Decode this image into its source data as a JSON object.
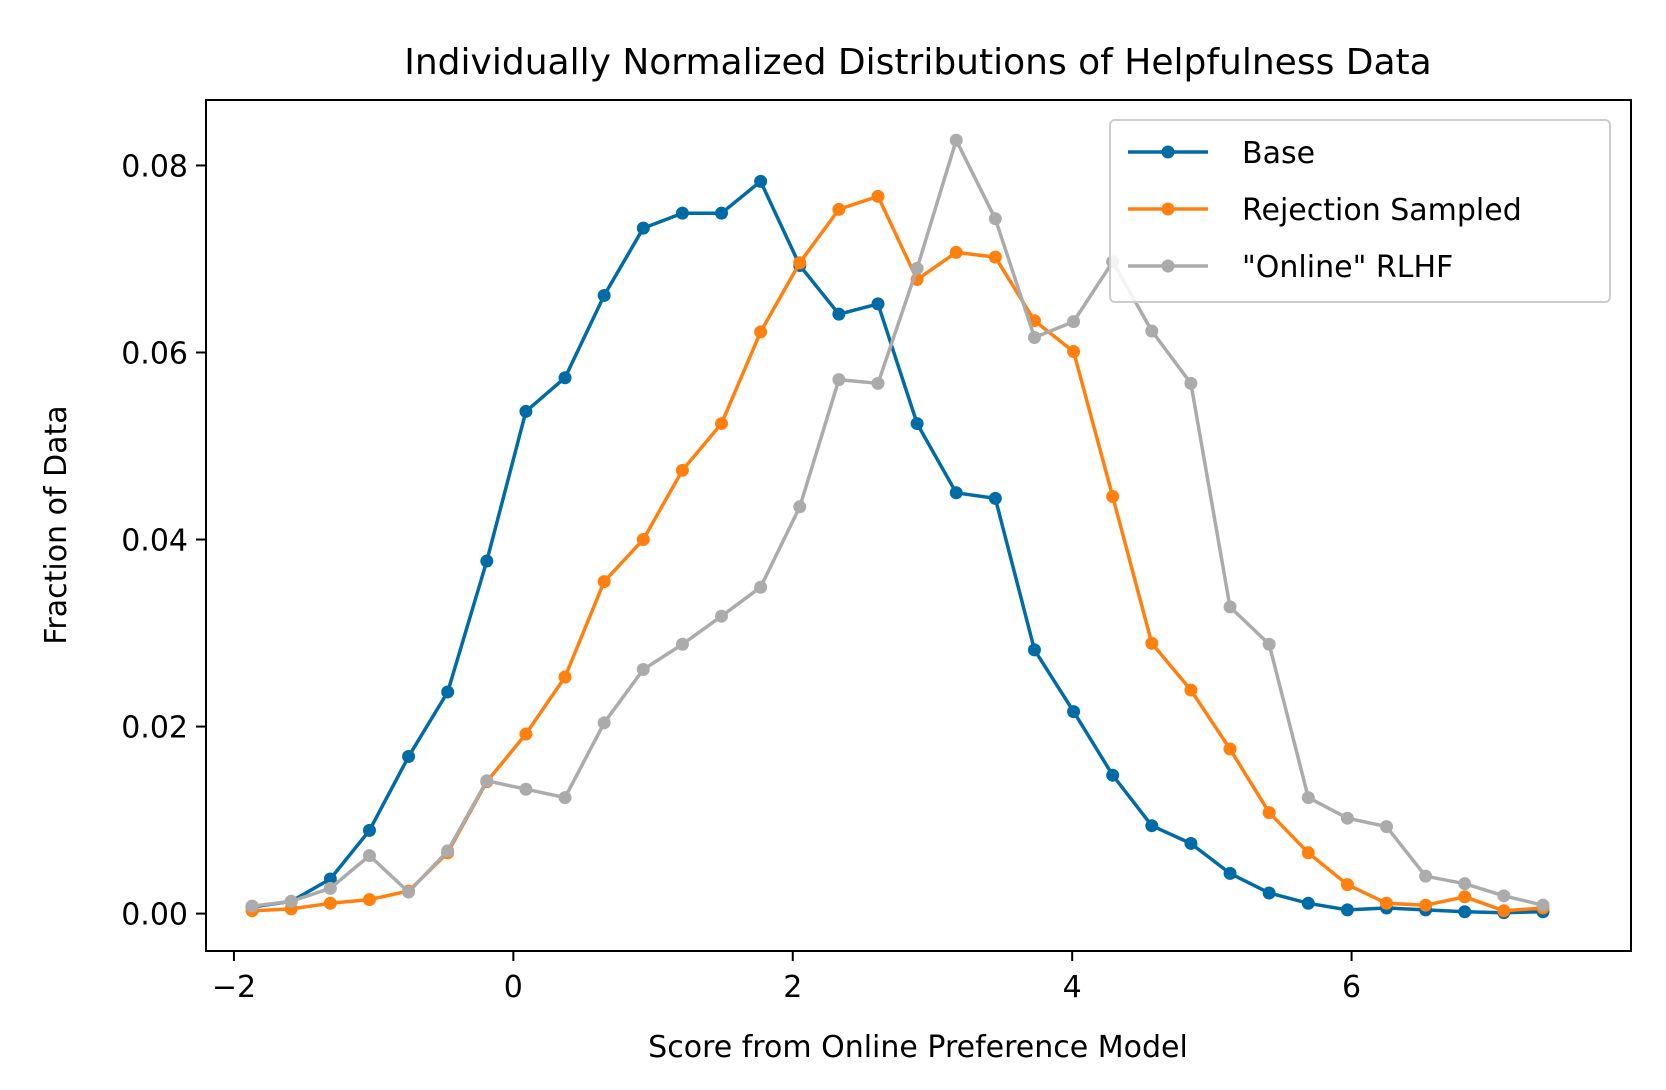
{
  "chart_data": {
    "type": "line",
    "title": "Individually Normalized Distributions of Helpfulness Data",
    "xlabel": "Score from Online Preference Model",
    "ylabel": "Fraction of Data",
    "xlim": [
      -2.2,
      8.0
    ],
    "ylim": [
      -0.004,
      0.087
    ],
    "x_ticks": [
      -2,
      0,
      2,
      4,
      6
    ],
    "x_tick_labels": [
      "−2",
      "0",
      "2",
      "4",
      "6"
    ],
    "y_ticks": [
      0.0,
      0.02,
      0.04,
      0.06,
      0.08
    ],
    "y_tick_labels": [
      "0.00",
      "0.02",
      "0.04",
      "0.06",
      "0.08"
    ],
    "grid": false,
    "legend_position": "top-right",
    "x": [
      -1.87,
      -1.59,
      -1.31,
      -1.03,
      -0.75,
      -0.47,
      -0.19,
      0.09,
      0.37,
      0.65,
      0.93,
      1.21,
      1.49,
      1.77,
      2.05,
      2.33,
      2.61,
      2.89,
      3.17,
      3.45,
      3.73,
      4.01,
      4.29,
      4.57,
      4.85,
      5.13,
      5.41,
      5.69,
      5.97,
      6.25,
      6.53,
      6.81,
      7.09,
      7.37
    ],
    "series": [
      {
        "name": "Base",
        "color": "#006BA4",
        "values": [
          0.0007,
          0.0013,
          0.0037,
          0.0089,
          0.0168,
          0.0237,
          0.0377,
          0.0537,
          0.0573,
          0.0661,
          0.0733,
          0.0749,
          0.0749,
          0.0783,
          0.0693,
          0.0641,
          0.0652,
          0.0524,
          0.045,
          0.0444,
          0.0282,
          0.0216,
          0.0148,
          0.0094,
          0.0075,
          0.0043,
          0.0022,
          0.0011,
          0.0004,
          0.0006,
          0.0004,
          0.0002,
          0.0001,
          0.0002
        ]
      },
      {
        "name": "Rejection Sampled",
        "color": "#FF800E",
        "values": [
          0.0003,
          0.0005,
          0.0011,
          0.0015,
          0.0024,
          0.0065,
          0.0141,
          0.0192,
          0.0253,
          0.0355,
          0.04,
          0.0474,
          0.0524,
          0.0622,
          0.0696,
          0.0753,
          0.0767,
          0.0678,
          0.0707,
          0.0702,
          0.0634,
          0.0601,
          0.0446,
          0.0289,
          0.0239,
          0.0176,
          0.0108,
          0.0065,
          0.0031,
          0.0011,
          0.0009,
          0.0018,
          0.0003,
          0.0006
        ]
      },
      {
        "name": "\"Online\" RLHF",
        "color": "#ABABAB",
        "values": [
          0.0008,
          0.0013,
          0.0027,
          0.0062,
          0.0023,
          0.0067,
          0.0142,
          0.0133,
          0.0124,
          0.0204,
          0.0261,
          0.0288,
          0.0318,
          0.0349,
          0.0435,
          0.0571,
          0.0567,
          0.069,
          0.0827,
          0.0743,
          0.0616,
          0.0633,
          0.0697,
          0.0623,
          0.0567,
          0.0328,
          0.0288,
          0.0124,
          0.0102,
          0.0093,
          0.004,
          0.0032,
          0.0019,
          0.0009
        ]
      }
    ]
  }
}
